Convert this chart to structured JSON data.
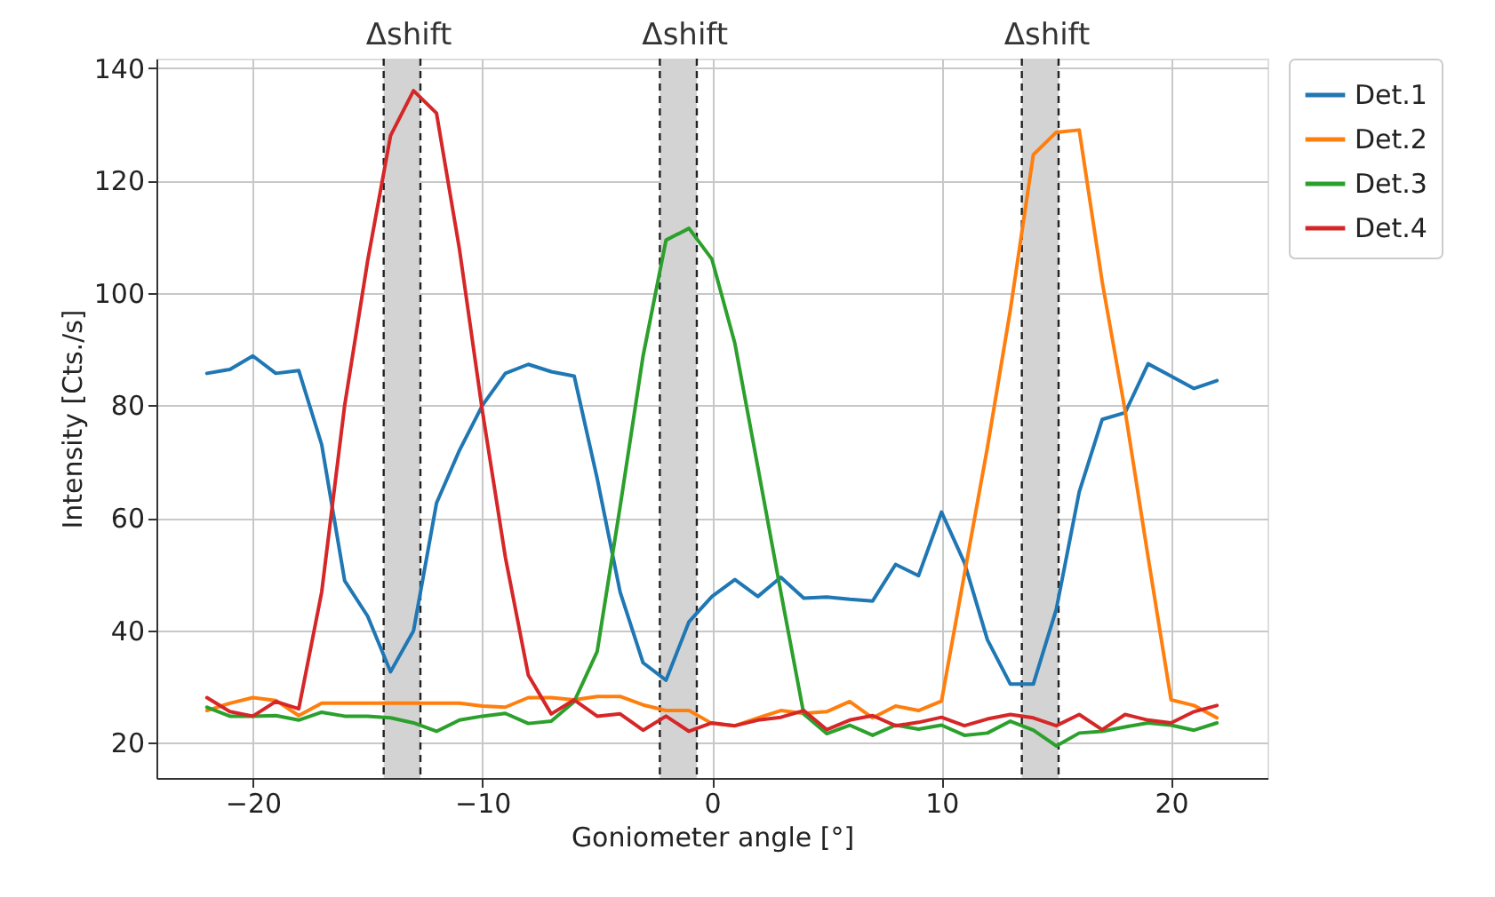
{
  "chart_data": {
    "type": "line",
    "xlabel": "Goniometer angle [°]",
    "ylabel": "Intensity [Cts./s]",
    "x": [
      -22,
      -21,
      -20,
      -19,
      -18,
      -17,
      -16,
      -15,
      -14,
      -13,
      -12,
      -11,
      -10,
      -9,
      -8,
      -7,
      -6,
      -5,
      -4,
      -3,
      -2,
      -1,
      0,
      1,
      2,
      3,
      4,
      5,
      6,
      7,
      8,
      9,
      10,
      11,
      12,
      13,
      14,
      15,
      16,
      17,
      18,
      19,
      20,
      21,
      22
    ],
    "series": [
      {
        "name": "Det.1",
        "color": "#1f77b4",
        "values": [
          85.7,
          86.4,
          88.8,
          85.7,
          86.2,
          73,
          48.8,
          42.5,
          32.6,
          39.9,
          62.6,
          72,
          80,
          85.7,
          87.3,
          86,
          85.2,
          67,
          46.8,
          34.2,
          31.1,
          41.5,
          46,
          49,
          46,
          49.4,
          45.7,
          45.9,
          45.5,
          45.2,
          51.7,
          49.7,
          61,
          52,
          38.3,
          30.4,
          30.4,
          43.7,
          64.6,
          77.5,
          78.7,
          87.4,
          85.2,
          83,
          84.4
        ]
      },
      {
        "name": "Det.2",
        "color": "#ff7f0e",
        "values": [
          25.7,
          27,
          28,
          27.5,
          24.8,
          27,
          27,
          27,
          27,
          27,
          27,
          27,
          26.5,
          26.3,
          28,
          28,
          27.6,
          28.2,
          28.2,
          26.7,
          25.7,
          25.7,
          23.4,
          23,
          24.4,
          25.7,
          25.2,
          25.5,
          27.3,
          24.4,
          26.5,
          25.7,
          27.4,
          50,
          72.5,
          97,
          124.6,
          128.6,
          129,
          102,
          79,
          53,
          27.6,
          26.6,
          24.4
        ]
      },
      {
        "name": "Det.3",
        "color": "#2ca02c",
        "values": [
          26.3,
          24.7,
          24.7,
          24.8,
          24,
          25.4,
          24.7,
          24.7,
          24.4,
          23.5,
          22,
          24,
          24.7,
          25.2,
          23.4,
          23.8,
          27.3,
          36.2,
          62,
          88.8,
          109.4,
          111.5,
          106,
          91,
          69,
          46.8,
          25.1,
          21.6,
          23.1,
          21.3,
          23.1,
          22.4,
          23.1,
          21.3,
          21.7,
          23.8,
          22.2,
          19.4,
          21.7,
          22,
          22.8,
          23.5,
          23.1,
          22.2,
          23.5
        ]
      },
      {
        "name": "Det.4",
        "color": "#d62728",
        "values": [
          28,
          25.5,
          24.7,
          27.3,
          26,
          46.8,
          80,
          105.7,
          128,
          136,
          132,
          107.8,
          79,
          53,
          32,
          25.1,
          27.6,
          24.7,
          25.1,
          22.2,
          24.7,
          22,
          23.5,
          23,
          24,
          24.5,
          25.7,
          22.3,
          24,
          24.8,
          23,
          23.6,
          24.5,
          23,
          24.2,
          25,
          24.4,
          23,
          25,
          22.3,
          25,
          24,
          23.5,
          25.5,
          26.6
        ]
      }
    ],
    "xlim": [
      -24.2,
      24.2
    ],
    "xticks": [
      -20,
      -10,
      0,
      10,
      20
    ],
    "ylim": [
      13.7,
      141.7
    ],
    "yticks": [
      20,
      40,
      60,
      80,
      100,
      120,
      140
    ],
    "bands": [
      {
        "axis": "x",
        "from": -14.3,
        "to": -12.7,
        "label": "Δshift",
        "color": "#d3d3d3"
      },
      {
        "axis": "x",
        "from": -2.27,
        "to": -0.66,
        "label": "Δshift",
        "color": "#d3d3d3"
      },
      {
        "axis": "x",
        "from": 13.5,
        "to": 15.1,
        "label": "Δshift",
        "color": "#d3d3d3"
      }
    ],
    "grid": true,
    "legend": "top right",
    "marker": "none",
    "line_style": "solid"
  }
}
